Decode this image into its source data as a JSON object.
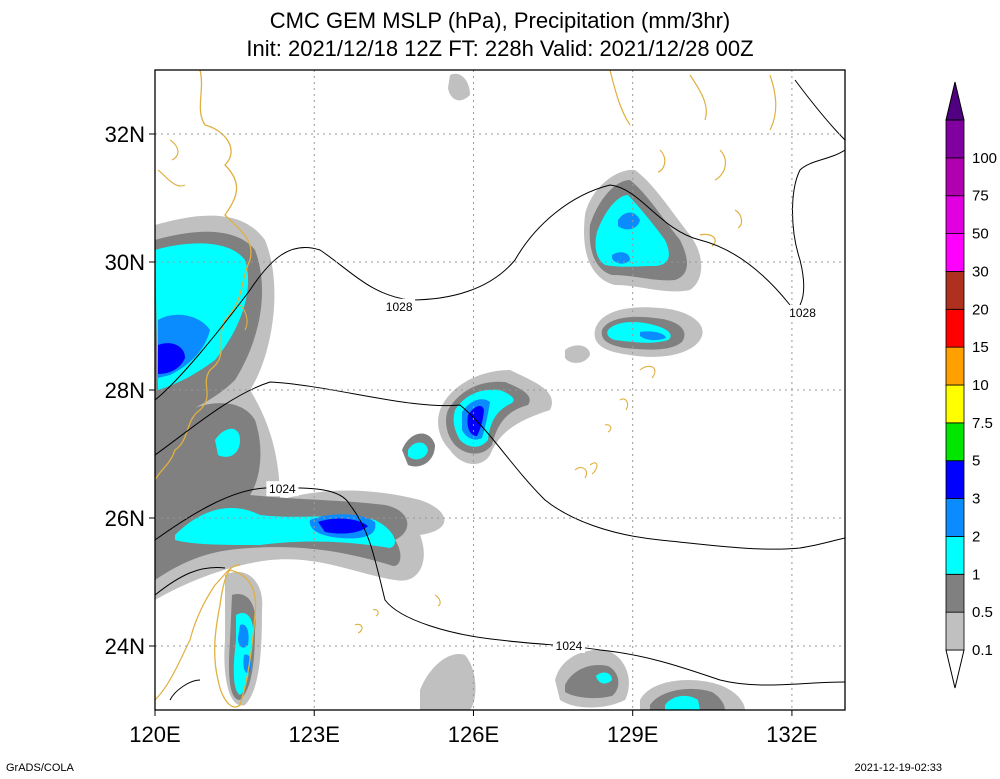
{
  "title": "CMC GEM MSLP (hPa), Precipitation (mm/3hr)",
  "subtitle": "Init: 2021/12/18 12Z  FT: 228h  Valid: 2021/12/28 00Z",
  "map": {
    "lon_range": [
      120,
      133
    ],
    "lat_range": [
      23,
      33
    ],
    "lon_ticks": [
      {
        "value": 120,
        "label": "120E"
      },
      {
        "value": 123,
        "label": "123E"
      },
      {
        "value": 126,
        "label": "126E"
      },
      {
        "value": 129,
        "label": "129E"
      },
      {
        "value": 132,
        "label": "132E"
      }
    ],
    "lat_ticks": [
      {
        "value": 24,
        "label": "24N"
      },
      {
        "value": 26,
        "label": "26N"
      },
      {
        "value": 28,
        "label": "28N"
      },
      {
        "value": 30,
        "label": "30N"
      },
      {
        "value": 32,
        "label": "32N"
      }
    ],
    "grid": true,
    "coastline_color": "#e0b040",
    "isobar_labels": [
      {
        "text": "1028",
        "lon": 124.6,
        "lat": 29.3
      },
      {
        "text": "1028",
        "lon": 132.2,
        "lat": 29.2
      },
      {
        "text": "1024",
        "lon": 122.4,
        "lat": 26.45
      },
      {
        "text": "1024",
        "lon": 127.8,
        "lat": 24.0
      }
    ]
  },
  "legend": {
    "items": [
      {
        "label": "0.1",
        "color": "#c0c0c0"
      },
      {
        "label": "0.5",
        "color": "#808080"
      },
      {
        "label": "1",
        "color": "#00ffff"
      },
      {
        "label": "2",
        "color": "#0a8cff"
      },
      {
        "label": "3",
        "color": "#0000ff"
      },
      {
        "label": "5",
        "color": "#00e600"
      },
      {
        "label": "7.5",
        "color": "#ffff00"
      },
      {
        "label": "10",
        "color": "#ffa000"
      },
      {
        "label": "15",
        "color": "#ff0000"
      },
      {
        "label": "20",
        "color": "#b03020"
      },
      {
        "label": "30",
        "color": "#ff00ff"
      },
      {
        "label": "50",
        "color": "#e000e0"
      },
      {
        "label": "75",
        "color": "#b000b0"
      },
      {
        "label": "100",
        "color": "#8000a0"
      }
    ],
    "top_arrow_color": "#500080"
  },
  "footer_left": "GrADS/COLA",
  "footer_right": "2021-12-19-02:33"
}
